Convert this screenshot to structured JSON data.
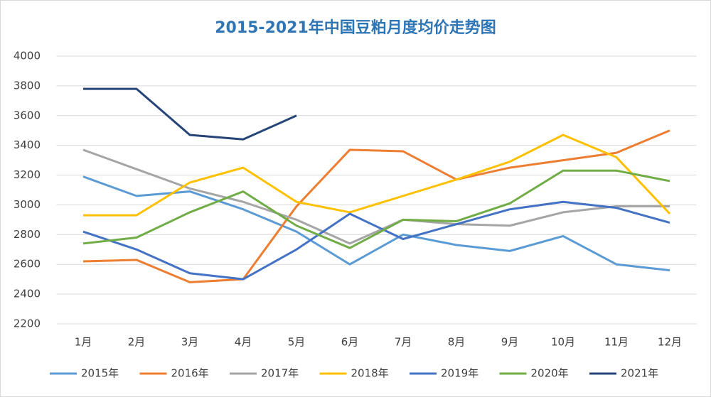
{
  "chart_data": {
    "type": "line",
    "title": "2015-2021年中国豆粕月度均价走势图",
    "categories": [
      "1月",
      "2月",
      "3月",
      "4月",
      "5月",
      "6月",
      "7月",
      "8月",
      "9月",
      "10月",
      "11月",
      "12月"
    ],
    "series": [
      {
        "name": "2015年",
        "color": "#5b9bd5",
        "values": [
          3190,
          3060,
          3090,
          2970,
          2820,
          2600,
          2800,
          2730,
          2690,
          2790,
          2600,
          2560
        ]
      },
      {
        "name": "2016年",
        "color": "#ed7d31",
        "values": [
          2620,
          2630,
          2480,
          2500,
          2990,
          3370,
          3360,
          3170,
          3250,
          3300,
          3350,
          3500
        ]
      },
      {
        "name": "2017年",
        "color": "#a5a5a5",
        "values": [
          3370,
          3240,
          3110,
          3020,
          2900,
          2740,
          2900,
          2870,
          2860,
          2950,
          2990,
          2990
        ]
      },
      {
        "name": "2018年",
        "color": "#ffc000",
        "values": [
          2930,
          2930,
          3150,
          3250,
          3020,
          2950,
          3060,
          3170,
          3290,
          3470,
          3320,
          2940
        ]
      },
      {
        "name": "2019年",
        "color": "#4472c4",
        "values": [
          2820,
          2700,
          2540,
          2500,
          2700,
          2940,
          2770,
          2870,
          2970,
          3020,
          2980,
          2880
        ]
      },
      {
        "name": "2020年",
        "color": "#70ad47",
        "values": [
          2740,
          2780,
          2950,
          3090,
          2860,
          2710,
          2900,
          2890,
          3010,
          3230,
          3230,
          3160
        ]
      },
      {
        "name": "2021年",
        "color": "#264478",
        "values": [
          3780,
          3780,
          3470,
          3440,
          3600,
          null,
          null,
          null,
          null,
          null,
          null,
          null
        ]
      }
    ],
    "ylim": [
      2200,
      4000
    ],
    "yticks": [
      2200,
      2400,
      2600,
      2800,
      3000,
      3200,
      3400,
      3600,
      3800,
      4000
    ],
    "grid": true,
    "legend": "bottom"
  }
}
